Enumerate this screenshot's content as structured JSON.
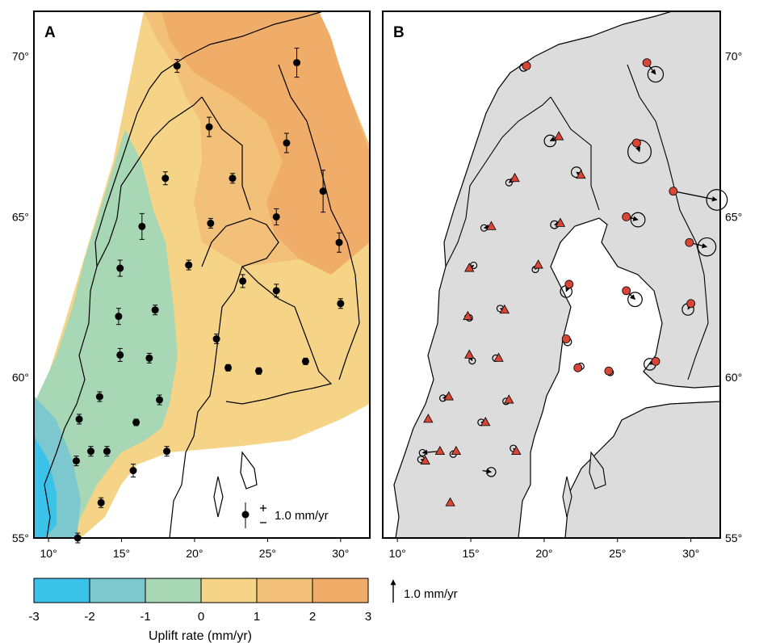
{
  "panel_a": {
    "label": "A",
    "scale_label": "1.0 mm/yr",
    "stations": [
      {
        "lon": 18.8,
        "lat": 69.7,
        "e": 0.2
      },
      {
        "lon": 27.0,
        "lat": 69.8,
        "e": 0.45
      },
      {
        "lon": 21.0,
        "lat": 67.8,
        "e": 0.3
      },
      {
        "lon": 26.3,
        "lat": 67.3,
        "e": 0.3
      },
      {
        "lon": 18.0,
        "lat": 66.2,
        "e": 0.2
      },
      {
        "lon": 22.6,
        "lat": 66.2,
        "e": 0.15
      },
      {
        "lon": 28.8,
        "lat": 65.8,
        "e": 0.65
      },
      {
        "lon": 16.4,
        "lat": 64.7,
        "e": 0.4
      },
      {
        "lon": 21.1,
        "lat": 64.8,
        "e": 0.15
      },
      {
        "lon": 25.6,
        "lat": 65.0,
        "e": 0.25
      },
      {
        "lon": 29.9,
        "lat": 64.2,
        "e": 0.3
      },
      {
        "lon": 14.9,
        "lat": 63.4,
        "e": 0.25
      },
      {
        "lon": 19.6,
        "lat": 63.5,
        "e": 0.15
      },
      {
        "lon": 23.3,
        "lat": 63.0,
        "e": 0.2
      },
      {
        "lon": 25.6,
        "lat": 62.7,
        "e": 0.2
      },
      {
        "lon": 14.8,
        "lat": 61.9,
        "e": 0.25
      },
      {
        "lon": 17.3,
        "lat": 62.1,
        "e": 0.15
      },
      {
        "lon": 21.5,
        "lat": 61.2,
        "e": 0.15
      },
      {
        "lon": 30.0,
        "lat": 62.3,
        "e": 0.15
      },
      {
        "lon": 14.9,
        "lat": 60.7,
        "e": 0.2
      },
      {
        "lon": 16.9,
        "lat": 60.6,
        "e": 0.15
      },
      {
        "lon": 22.3,
        "lat": 60.3,
        "e": 0.1
      },
      {
        "lon": 24.4,
        "lat": 60.2,
        "e": 0.1
      },
      {
        "lon": 27.6,
        "lat": 60.5,
        "e": 0.1
      },
      {
        "lon": 13.5,
        "lat": 59.4,
        "e": 0.15
      },
      {
        "lon": 17.6,
        "lat": 59.3,
        "e": 0.15
      },
      {
        "lon": 12.1,
        "lat": 58.7,
        "e": 0.15
      },
      {
        "lon": 16.0,
        "lat": 58.6,
        "e": 0.1
      },
      {
        "lon": 12.9,
        "lat": 57.7,
        "e": 0.15
      },
      {
        "lon": 14.0,
        "lat": 57.7,
        "e": 0.15
      },
      {
        "lon": 18.1,
        "lat": 57.7,
        "e": 0.15
      },
      {
        "lon": 11.9,
        "lat": 57.4,
        "e": 0.15
      },
      {
        "lon": 15.8,
        "lat": 57.1,
        "e": 0.2
      },
      {
        "lon": 13.6,
        "lat": 56.1,
        "e": 0.15
      },
      {
        "lon": 12.0,
        "lat": 55.0,
        "e": 0.15
      }
    ]
  },
  "panel_b": {
    "label": "B",
    "scale_label": "1.0 mm/yr",
    "circles": [
      {
        "lon": 18.8,
        "lat": 69.7,
        "dx": -0.2,
        "dy": -0.1,
        "r": 0.3
      },
      {
        "lon": 27.0,
        "lat": 69.8,
        "dx": 0.6,
        "dy": -0.8,
        "r": 0.6
      },
      {
        "lon": 21.0,
        "lat": 67.5,
        "dx": -0.6,
        "dy": -0.3,
        "r": 0.45
      },
      {
        "lon": 26.3,
        "lat": 67.3,
        "dx": 0.2,
        "dy": -0.6,
        "r": 0.9
      },
      {
        "lon": 22.5,
        "lat": 66.3,
        "dx": -0.3,
        "dy": 0.2,
        "r": 0.4
      },
      {
        "lon": 18.0,
        "lat": 66.2,
        "dx": -0.4,
        "dy": -0.3,
        "r": 0.25
      },
      {
        "lon": 28.8,
        "lat": 65.8,
        "dx": 3.0,
        "dy": -0.6,
        "r": 0.8
      },
      {
        "lon": 21.1,
        "lat": 64.8,
        "dx": -0.4,
        "dy": -0.1,
        "r": 0.3
      },
      {
        "lon": 16.4,
        "lat": 64.7,
        "dx": -0.5,
        "dy": -0.1,
        "r": 0.25
      },
      {
        "lon": 25.6,
        "lat": 65.0,
        "dx": 0.8,
        "dy": -0.2,
        "r": 0.55
      },
      {
        "lon": 29.9,
        "lat": 64.2,
        "dx": 1.2,
        "dy": -0.3,
        "r": 0.7
      },
      {
        "lon": 14.9,
        "lat": 63.4,
        "dx": 0.3,
        "dy": 0.2,
        "r": 0.2
      },
      {
        "lon": 19.6,
        "lat": 63.5,
        "dx": -0.2,
        "dy": -0.3,
        "r": 0.2
      },
      {
        "lon": 21.7,
        "lat": 62.9,
        "dx": -0.2,
        "dy": -0.5,
        "r": 0.45
      },
      {
        "lon": 25.6,
        "lat": 62.7,
        "dx": 0.6,
        "dy": -0.6,
        "r": 0.55
      },
      {
        "lon": 30.0,
        "lat": 62.3,
        "dx": -0.2,
        "dy": -0.4,
        "r": 0.45
      },
      {
        "lon": 17.3,
        "lat": 62.1,
        "dx": -0.3,
        "dy": 0.1,
        "r": 0.2
      },
      {
        "lon": 14.8,
        "lat": 61.9,
        "dx": 0.1,
        "dy": -0.1,
        "r": 0.2
      },
      {
        "lon": 21.5,
        "lat": 61.2,
        "dx": 0.1,
        "dy": -0.2,
        "r": 0.3
      },
      {
        "lon": 14.9,
        "lat": 60.7,
        "dx": 0.2,
        "dy": -0.4,
        "r": 0.2
      },
      {
        "lon": 16.9,
        "lat": 60.6,
        "dx": -0.2,
        "dy": 0.0,
        "r": 0.2
      },
      {
        "lon": 22.3,
        "lat": 60.3,
        "dx": 0.2,
        "dy": 0.1,
        "r": 0.25
      },
      {
        "lon": 24.4,
        "lat": 60.2,
        "dx": 0.1,
        "dy": -0.1,
        "r": 0.2
      },
      {
        "lon": 27.6,
        "lat": 60.5,
        "dx": -0.4,
        "dy": -0.2,
        "r": 0.45
      },
      {
        "lon": 13.5,
        "lat": 59.4,
        "dx": -0.4,
        "dy": -0.1,
        "r": 0.25
      },
      {
        "lon": 17.6,
        "lat": 59.3,
        "dx": -0.2,
        "dy": -0.1,
        "r": 0.2
      },
      {
        "lon": 16.0,
        "lat": 58.6,
        "dx": -0.3,
        "dy": 0.0,
        "r": 0.25
      },
      {
        "lon": 14.0,
        "lat": 57.7,
        "dx": -0.2,
        "dy": -0.2,
        "r": 0.2
      },
      {
        "lon": 12.9,
        "lat": 57.7,
        "dx": -1.2,
        "dy": -0.1,
        "r": 0.2
      },
      {
        "lon": 15.8,
        "lat": 57.1,
        "dx": 0.6,
        "dy": -0.1,
        "r": 0.35
      },
      {
        "lon": 18.1,
        "lat": 57.7,
        "dx": -0.2,
        "dy": 0.2,
        "r": 0.25
      },
      {
        "lon": 11.9,
        "lat": 57.4,
        "dx": -0.3,
        "dy": 0.1,
        "r": 0.2
      }
    ],
    "triangles": [
      {
        "lon": 21.0,
        "lat": 67.5
      },
      {
        "lon": 22.5,
        "lat": 66.3
      },
      {
        "lon": 18.0,
        "lat": 66.2
      },
      {
        "lon": 21.1,
        "lat": 64.8
      },
      {
        "lon": 16.4,
        "lat": 64.7
      },
      {
        "lon": 14.9,
        "lat": 63.4
      },
      {
        "lon": 19.6,
        "lat": 63.5
      },
      {
        "lon": 17.3,
        "lat": 62.1
      },
      {
        "lon": 14.8,
        "lat": 61.9
      },
      {
        "lon": 14.9,
        "lat": 60.7
      },
      {
        "lon": 16.9,
        "lat": 60.6
      },
      {
        "lon": 13.5,
        "lat": 59.4
      },
      {
        "lon": 17.6,
        "lat": 59.3
      },
      {
        "lon": 16.0,
        "lat": 58.6
      },
      {
        "lon": 14.0,
        "lat": 57.7
      },
      {
        "lon": 12.1,
        "lat": 58.7
      },
      {
        "lon": 11.9,
        "lat": 57.4
      },
      {
        "lon": 18.1,
        "lat": 57.7
      },
      {
        "lon": 13.6,
        "lat": 56.1
      },
      {
        "lon": 12.9,
        "lat": 57.7
      }
    ],
    "dots": [
      {
        "lon": 18.8,
        "lat": 69.7
      },
      {
        "lon": 27.0,
        "lat": 69.8
      },
      {
        "lon": 26.3,
        "lat": 67.3
      },
      {
        "lon": 28.8,
        "lat": 65.8
      },
      {
        "lon": 25.6,
        "lat": 65.0
      },
      {
        "lon": 29.9,
        "lat": 64.2
      },
      {
        "lon": 21.7,
        "lat": 62.9
      },
      {
        "lon": 25.6,
        "lat": 62.7
      },
      {
        "lon": 30.0,
        "lat": 62.3
      },
      {
        "lon": 21.5,
        "lat": 61.2
      },
      {
        "lon": 22.3,
        "lat": 60.3
      },
      {
        "lon": 24.4,
        "lat": 60.2
      },
      {
        "lon": 27.6,
        "lat": 60.5
      }
    ]
  },
  "axes": {
    "lon_ticks": [
      "10°",
      "15°",
      "20°",
      "25°",
      "30°"
    ],
    "lon_values": [
      10,
      15,
      20,
      25,
      30
    ],
    "lat_ticks": [
      "55°",
      "60°",
      "65°",
      "70°"
    ],
    "lat_values": [
      55,
      60,
      65,
      70
    ],
    "lon_range": [
      9,
      32
    ],
    "lat_range": [
      55,
      71.4
    ]
  },
  "colorbar": {
    "title": "Uplift rate (mm/yr)",
    "ticks": [
      "-3",
      "-2",
      "-1",
      "0",
      "1",
      "2",
      "3"
    ],
    "colors": [
      "#3bc2e8",
      "#7dc8cf",
      "#a7d7b4",
      "#f5d487",
      "#f2c078",
      "#f0ad6a"
    ]
  },
  "arrow_legend": {
    "label": "1.0 mm/yr"
  },
  "style": {
    "land_gray": "#dcdcdc",
    "marker_red": "#d94636"
  }
}
